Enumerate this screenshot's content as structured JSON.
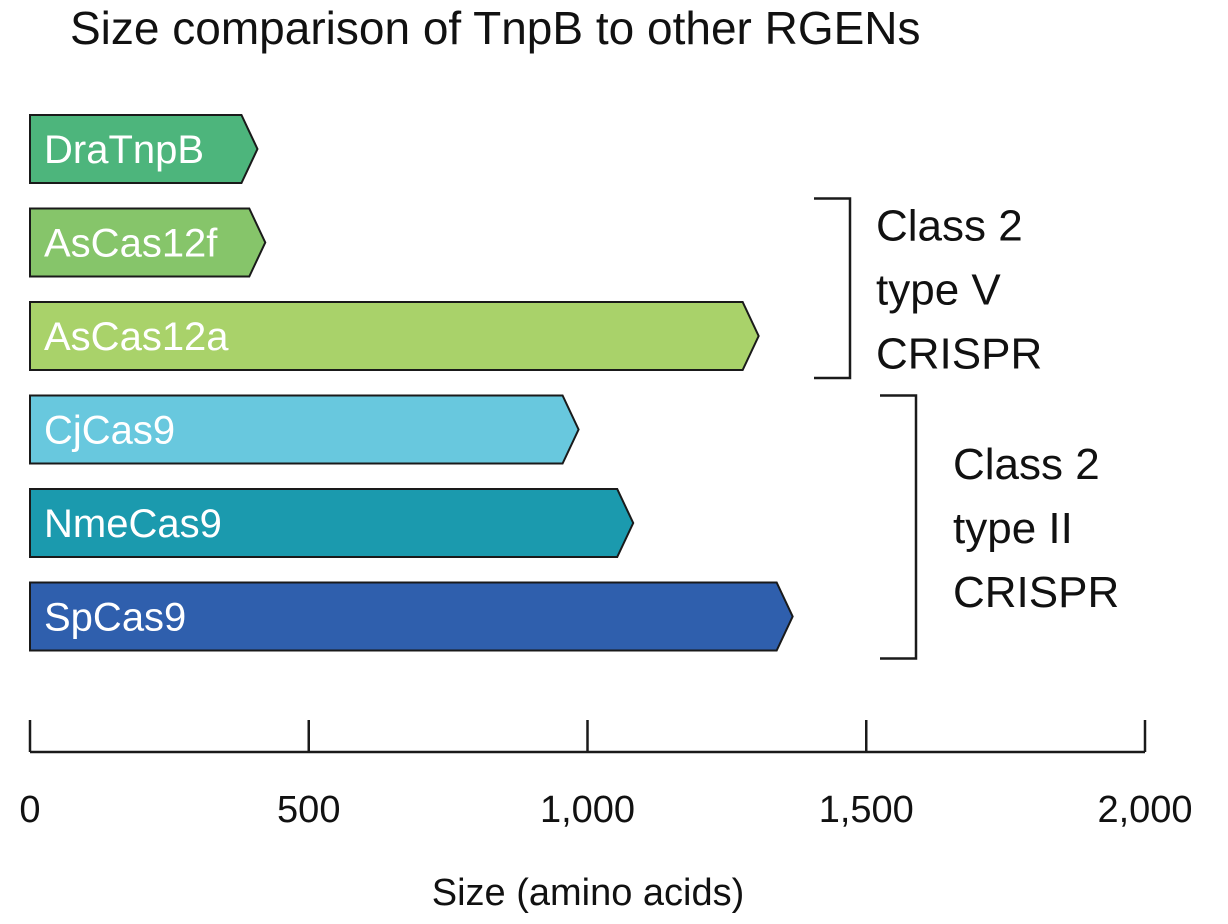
{
  "chart_data": {
    "type": "bar",
    "orientation": "horizontal",
    "title": "Size comparison of TnpB to other RGENs",
    "xlabel": "Size (amino acids)",
    "ylabel": "",
    "xlim": [
      0,
      2000
    ],
    "xticks": [
      {
        "value": 0,
        "label": "0"
      },
      {
        "value": 500,
        "label": "500"
      },
      {
        "value": 1000,
        "label": "1,000"
      },
      {
        "value": 1500,
        "label": "1,500"
      },
      {
        "value": 2000,
        "label": "2,000"
      }
    ],
    "grid": false,
    "bars": [
      {
        "name": "DraTnpB",
        "value": 408,
        "color": "#4db57c"
      },
      {
        "name": "AsCas12f",
        "value": 422,
        "color": "#86c56a"
      },
      {
        "name": "AsCas12a",
        "value": 1307,
        "color": "#a9d26a"
      },
      {
        "name": "CjCas9",
        "value": 984,
        "color": "#68c8de"
      },
      {
        "name": "NmeCas9",
        "value": 1082,
        "color": "#1b9aae"
      },
      {
        "name": "SpCas9",
        "value": 1368,
        "color": "#2f5fad"
      }
    ],
    "groups": [
      {
        "label_lines": [
          "Class 2",
          "type V",
          "CRISPR"
        ],
        "from": 1,
        "to": 2
      },
      {
        "label_lines": [
          "Class 2",
          "type II",
          "CRISPR"
        ],
        "from": 3,
        "to": 5
      }
    ]
  }
}
